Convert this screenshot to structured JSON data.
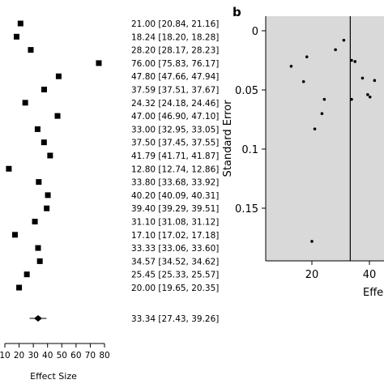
{
  "chart_data": [
    {
      "type": "forest",
      "panel": "",
      "xlabel": "Effect Size",
      "ylabel": "",
      "xlim": [
        10,
        80
      ],
      "xticks": [
        10,
        20,
        30,
        40,
        50,
        60,
        70,
        80
      ],
      "studies": [
        {
          "effect": 21.0,
          "label": "21.00 [20.84, 21.16]"
        },
        {
          "effect": 18.24,
          "label": "18.24 [18.20, 18.28]"
        },
        {
          "effect": 28.2,
          "label": "28.20 [28.17, 28.23]"
        },
        {
          "effect": 76.0,
          "label": "76.00 [75.83, 76.17]"
        },
        {
          "effect": 47.8,
          "label": "47.80 [47.66, 47.94]"
        },
        {
          "effect": 37.59,
          "label": "37.59 [37.51, 37.67]"
        },
        {
          "effect": 24.32,
          "label": "24.32 [24.18, 24.46]"
        },
        {
          "effect": 47.0,
          "label": "47.00 [46.90, 47.10]"
        },
        {
          "effect": 33.0,
          "label": "33.00 [32.95, 33.05]"
        },
        {
          "effect": 37.5,
          "label": "37.50 [37.45, 37.55]"
        },
        {
          "effect": 41.79,
          "label": "41.79 [41.71, 41.87]"
        },
        {
          "effect": 12.8,
          "label": "12.80 [12.74, 12.86]"
        },
        {
          "effect": 33.8,
          "label": "33.80 [33.68, 33.92]"
        },
        {
          "effect": 40.2,
          "label": "40.20 [40.09, 40.31]"
        },
        {
          "effect": 39.4,
          "label": "39.40 [39.29, 39.51]"
        },
        {
          "effect": 31.1,
          "label": "31.10 [31.08, 31.12]"
        },
        {
          "effect": 17.1,
          "label": "17.10 [17.02, 17.18]"
        },
        {
          "effect": 33.33,
          "label": "33.33 [33.06, 33.60]"
        },
        {
          "effect": 34.57,
          "label": "34.57 [34.52, 34.62]"
        },
        {
          "effect": 25.45,
          "label": "25.45 [25.33, 25.57]"
        },
        {
          "effect": 20.0,
          "label": "20.00 [19.65, 20.35]"
        }
      ],
      "summary": {
        "effect": 33.34,
        "lower": 27.43,
        "upper": 39.26,
        "label": "33.34 [27.43, 39.26]"
      }
    },
    {
      "type": "scatter",
      "panel": "b",
      "title": "",
      "xlabel": "Effect",
      "ylabel": "Standard Error",
      "xlim": [
        10,
        45
      ],
      "ylim": [
        0,
        0.19
      ],
      "y_inverted": true,
      "xticks": [
        20,
        40
      ],
      "yticks": [
        0,
        0.05,
        0.1,
        0.15
      ],
      "ytick_labels": [
        "0",
        "0.05",
        "0.1",
        "0.15"
      ],
      "reference_line": 33.34,
      "background": "#d9d9d9",
      "points": [
        {
          "x": 31.1,
          "y": 0.008
        },
        {
          "x": 28.2,
          "y": 0.016
        },
        {
          "x": 33.8,
          "y": 0.025
        },
        {
          "x": 18.24,
          "y": 0.022
        },
        {
          "x": 12.8,
          "y": 0.03
        },
        {
          "x": 35.0,
          "y": 0.026
        },
        {
          "x": 37.59,
          "y": 0.04
        },
        {
          "x": 17.1,
          "y": 0.043
        },
        {
          "x": 41.79,
          "y": 0.042
        },
        {
          "x": 24.32,
          "y": 0.058
        },
        {
          "x": 33.8,
          "y": 0.058
        },
        {
          "x": 40.2,
          "y": 0.056
        },
        {
          "x": 39.4,
          "y": 0.054
        },
        {
          "x": 23.5,
          "y": 0.07
        },
        {
          "x": 21.0,
          "y": 0.083
        },
        {
          "x": 20.0,
          "y": 0.178
        }
      ]
    }
  ]
}
